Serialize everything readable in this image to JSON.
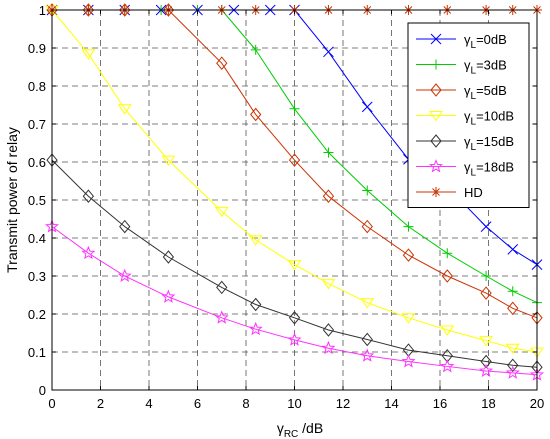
{
  "chart_data": {
    "type": "line",
    "title": "",
    "xlabel": "γ_RC /dB",
    "xlabel_main": "γ",
    "xlabel_sub": "RC",
    "xlabel_unit": " /dB",
    "ylabel": "Transmit power of relay",
    "xlim": [
      0,
      20
    ],
    "ylim": [
      0,
      1
    ],
    "x_ticks": [
      "0",
      "2",
      "4",
      "6",
      "8",
      "10",
      "12",
      "14",
      "16",
      "18",
      "20"
    ],
    "y_ticks": [
      "0",
      "0.1",
      "0.2",
      "0.3",
      "0.4",
      "0.5",
      "0.6",
      "0.7",
      "0.8",
      "0.9",
      "1"
    ],
    "grid": true,
    "legend_position": "top-right",
    "x": [
      0,
      1.5,
      3,
      4.5,
      6,
      7.5,
      9,
      10.5,
      12,
      13.5,
      15,
      16.5,
      18,
      20
    ],
    "series": [
      {
        "name": "γ_L=0dB",
        "label_main": "γ",
        "label_sub": "L",
        "label_rest": "=0dB",
        "color": "#0000ff",
        "marker": "x",
        "points": [
          [
            0,
            1
          ],
          [
            1.5,
            1
          ],
          [
            3,
            1
          ],
          [
            4.5,
            1
          ],
          [
            6,
            1
          ],
          [
            7.5,
            1
          ],
          [
            9,
            1
          ],
          [
            10,
            1
          ],
          [
            11.4,
            0.89
          ],
          [
            13,
            0.745
          ],
          [
            14.7,
            0.607
          ],
          [
            16.3,
            0.535
          ],
          [
            17.9,
            0.43
          ],
          [
            19,
            0.37
          ],
          [
            20,
            0.33
          ]
        ]
      },
      {
        "name": "γ_L=3dB",
        "label_main": "γ",
        "label_sub": "L",
        "label_rest": "=3dB",
        "color": "#00cc00",
        "marker": "plus",
        "points": [
          [
            0,
            1
          ],
          [
            1.5,
            1
          ],
          [
            3,
            1
          ],
          [
            4.5,
            1
          ],
          [
            6,
            1
          ],
          [
            7,
            1
          ],
          [
            8.4,
            0.895
          ],
          [
            10,
            0.74
          ],
          [
            11.4,
            0.625
          ],
          [
            13,
            0.525
          ],
          [
            14.7,
            0.43
          ],
          [
            16.3,
            0.36
          ],
          [
            17.9,
            0.3
          ],
          [
            19,
            0.26
          ],
          [
            20,
            0.23
          ]
        ]
      },
      {
        "name": "γ_L=5dB",
        "label_main": "γ",
        "label_sub": "L",
        "label_rest": "=5dB",
        "color": "#cc3300",
        "marker": "diamond",
        "points": [
          [
            0,
            1
          ],
          [
            1.5,
            1
          ],
          [
            3,
            1
          ],
          [
            4.8,
            1
          ],
          [
            7,
            0.86
          ],
          [
            8.4,
            0.725
          ],
          [
            10,
            0.605
          ],
          [
            11.4,
            0.51
          ],
          [
            13,
            0.43
          ],
          [
            14.7,
            0.355
          ],
          [
            16.3,
            0.3
          ],
          [
            17.9,
            0.255
          ],
          [
            19,
            0.215
          ],
          [
            20,
            0.19
          ]
        ]
      },
      {
        "name": "γ_L=10dB",
        "label_main": "γ",
        "label_sub": "L",
        "label_rest": "=10dB",
        "color": "#ffff00",
        "marker": "triangle-down",
        "points": [
          [
            0,
            1
          ],
          [
            1.5,
            0.885
          ],
          [
            3,
            0.74
          ],
          [
            4.8,
            0.605
          ],
          [
            7,
            0.47
          ],
          [
            8.4,
            0.395
          ],
          [
            10,
            0.33
          ],
          [
            11.4,
            0.28
          ],
          [
            13,
            0.23
          ],
          [
            14.7,
            0.19
          ],
          [
            16.3,
            0.158
          ],
          [
            17.9,
            0.13
          ],
          [
            19,
            0.11
          ],
          [
            20,
            0.1
          ]
        ]
      },
      {
        "name": "γ_L=15dB",
        "label_main": "γ",
        "label_sub": "L",
        "label_rest": "=15dB",
        "color": "#333333",
        "marker": "diamond",
        "points": [
          [
            0,
            0.605
          ],
          [
            1.5,
            0.51
          ],
          [
            3,
            0.43
          ],
          [
            4.8,
            0.35
          ],
          [
            7,
            0.27
          ],
          [
            8.4,
            0.225
          ],
          [
            10,
            0.19
          ],
          [
            11.4,
            0.158
          ],
          [
            13,
            0.133
          ],
          [
            14.7,
            0.105
          ],
          [
            16.3,
            0.09
          ],
          [
            17.9,
            0.075
          ],
          [
            19,
            0.065
          ],
          [
            20,
            0.06
          ]
        ]
      },
      {
        "name": "γ_L=18dB",
        "label_main": "γ",
        "label_sub": "L",
        "label_rest": "=18dB",
        "color": "#ff33ff",
        "marker": "star",
        "points": [
          [
            0,
            0.43
          ],
          [
            1.5,
            0.36
          ],
          [
            3,
            0.3
          ],
          [
            4.8,
            0.245
          ],
          [
            7,
            0.19
          ],
          [
            8.4,
            0.16
          ],
          [
            10,
            0.132
          ],
          [
            11.4,
            0.11
          ],
          [
            13,
            0.09
          ],
          [
            14.7,
            0.075
          ],
          [
            16.3,
            0.062
          ],
          [
            17.9,
            0.05
          ],
          [
            19,
            0.045
          ],
          [
            20,
            0.04
          ]
        ]
      },
      {
        "name": "HD",
        "label_main": "HD",
        "label_sub": "",
        "label_rest": "",
        "color": "#cc3300",
        "marker": "asterisk",
        "points": [
          [
            0,
            1
          ],
          [
            1.5,
            1
          ],
          [
            3,
            1
          ],
          [
            4.8,
            1
          ],
          [
            7,
            1
          ],
          [
            8.4,
            1
          ],
          [
            10,
            1
          ],
          [
            11.4,
            1
          ],
          [
            13,
            1
          ],
          [
            14.7,
            1
          ],
          [
            16.3,
            1
          ],
          [
            17.9,
            1
          ],
          [
            19,
            1
          ],
          [
            20,
            1
          ]
        ]
      }
    ]
  }
}
